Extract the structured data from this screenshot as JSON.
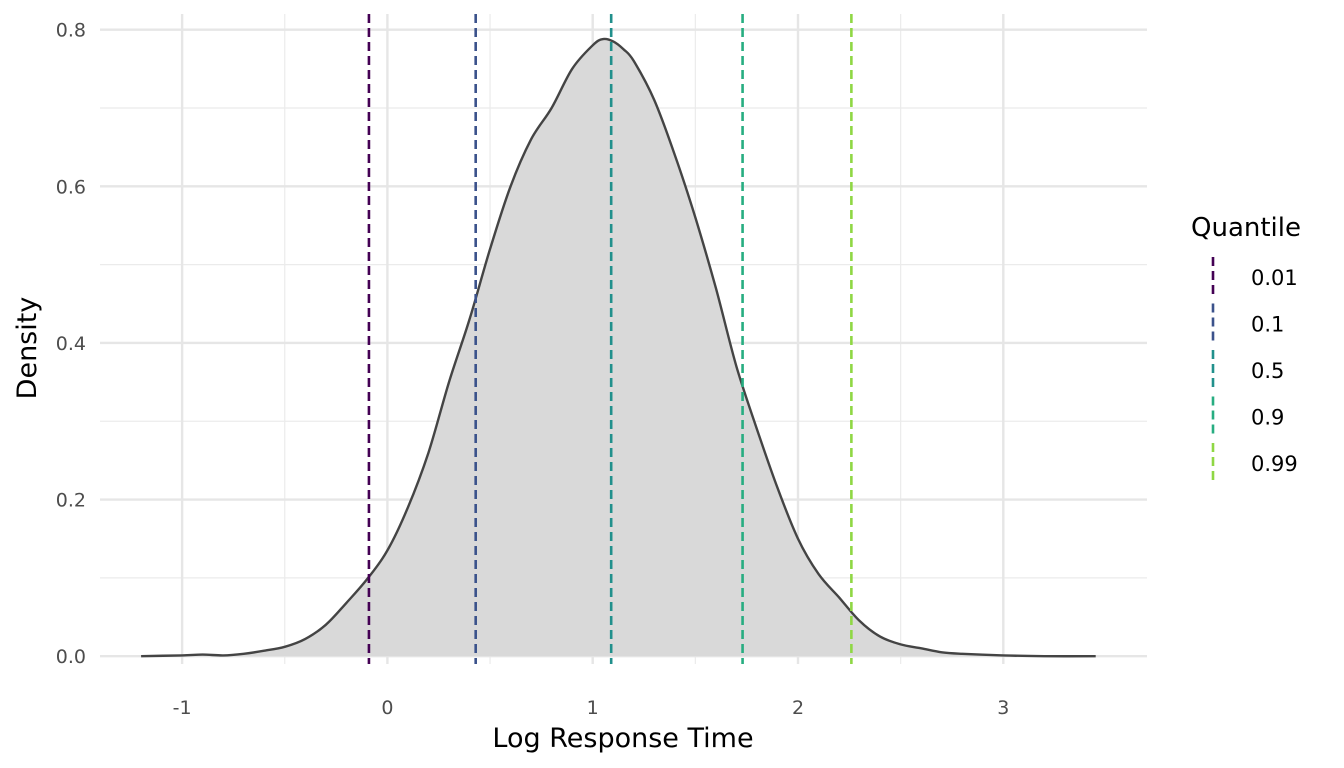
{
  "chart_data": {
    "type": "area",
    "title": "",
    "xlabel": "Log Response Time",
    "ylabel": "Density",
    "xlim": [
      -1.4,
      3.7
    ],
    "ylim": [
      -0.01,
      0.82
    ],
    "x_ticks": [
      -1,
      0,
      1,
      2,
      3
    ],
    "x_tick_labels": [
      "-1",
      "0",
      "1",
      "2",
      "3"
    ],
    "y_ticks": [
      0.0,
      0.2,
      0.4,
      0.6,
      0.8
    ],
    "y_tick_labels": [
      "0.0",
      "0.2",
      "0.4",
      "0.6",
      "0.8"
    ],
    "grid": true,
    "density": {
      "fill_color": "#d9d9d9",
      "line_color": "#444444",
      "x": [
        -1.2,
        -1.0,
        -0.9,
        -0.8,
        -0.7,
        -0.6,
        -0.5,
        -0.4,
        -0.3,
        -0.2,
        -0.1,
        0.0,
        0.1,
        0.2,
        0.3,
        0.4,
        0.5,
        0.6,
        0.7,
        0.8,
        0.9,
        1.0,
        1.05,
        1.1,
        1.15,
        1.2,
        1.3,
        1.4,
        1.5,
        1.6,
        1.7,
        1.8,
        1.9,
        2.0,
        2.1,
        2.2,
        2.3,
        2.4,
        2.5,
        2.6,
        2.7,
        2.8,
        3.0,
        3.2,
        3.45
      ],
      "y": [
        0.0,
        0.001,
        0.002,
        0.001,
        0.003,
        0.007,
        0.012,
        0.022,
        0.04,
        0.068,
        0.098,
        0.135,
        0.19,
        0.26,
        0.35,
        0.43,
        0.52,
        0.6,
        0.66,
        0.7,
        0.75,
        0.78,
        0.788,
        0.785,
        0.775,
        0.76,
        0.71,
        0.64,
        0.56,
        0.47,
        0.37,
        0.29,
        0.215,
        0.15,
        0.105,
        0.075,
        0.045,
        0.025,
        0.015,
        0.01,
        0.005,
        0.003,
        0.001,
        0.0,
        0.0
      ]
    },
    "quantile_lines": [
      {
        "name": "0.01",
        "x": -0.09,
        "color": "#440154"
      },
      {
        "name": "0.1",
        "x": 0.43,
        "color": "#3b528b"
      },
      {
        "name": "0.5",
        "x": 1.09,
        "color": "#21908c"
      },
      {
        "name": "0.9",
        "x": 1.73,
        "color": "#27ad81"
      },
      {
        "name": "0.99",
        "x": 2.26,
        "color": "#8fd744"
      }
    ],
    "legend": {
      "title": "Quantile",
      "position": "right"
    }
  }
}
